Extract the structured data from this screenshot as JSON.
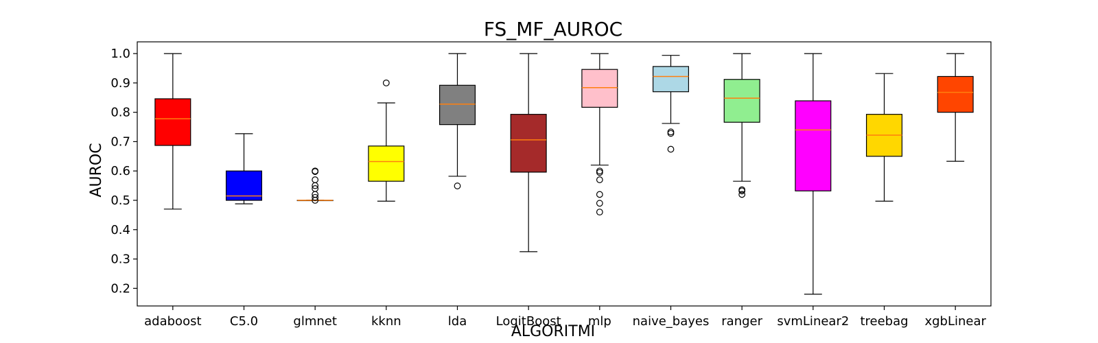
{
  "chart_data": {
    "type": "box",
    "title": "FS_MF_AUROC",
    "xlabel": "ALGORITMI",
    "ylabel": "AUROC",
    "ylim": [
      0.14,
      1.04
    ],
    "yticks": [
      "0.2",
      "0.3",
      "0.4",
      "0.5",
      "0.6",
      "0.7",
      "0.8",
      "0.9",
      "1.0"
    ],
    "grid": false,
    "median_color": "#ff7f0e",
    "categories": [
      "adaboost",
      "C5.0",
      "glmnet",
      "kknn",
      "lda",
      "LogitBoost",
      "mlp",
      "naive_bayes",
      "ranger",
      "svmLinear2",
      "treebag",
      "xgbLinear"
    ],
    "series": [
      {
        "color": "#ff0000",
        "whisker_low": 0.47,
        "q1": 0.687,
        "median": 0.778,
        "q3": 0.846,
        "whisker_high": 1.0,
        "outliers": []
      },
      {
        "color": "#0000ff",
        "whisker_low": 0.488,
        "q1": 0.5,
        "median": 0.515,
        "q3": 0.6,
        "whisker_high": 0.727,
        "outliers": []
      },
      {
        "color": "#ffffff",
        "whisker_low": 0.5,
        "q1": 0.5,
        "median": 0.5,
        "q3": 0.5,
        "whisker_high": 0.5,
        "outliers": [
          0.6,
          0.598,
          0.57,
          0.55,
          0.54,
          0.52,
          0.51,
          0.5
        ]
      },
      {
        "color": "#ffff00",
        "whisker_low": 0.497,
        "q1": 0.565,
        "median": 0.632,
        "q3": 0.685,
        "whisker_high": 0.832,
        "outliers": [
          0.9
        ]
      },
      {
        "color": "#808080",
        "whisker_low": 0.582,
        "q1": 0.758,
        "median": 0.828,
        "q3": 0.892,
        "whisker_high": 1.0,
        "outliers": [
          0.549
        ]
      },
      {
        "color": "#a52a2a",
        "whisker_low": 0.325,
        "q1": 0.596,
        "median": 0.706,
        "q3": 0.793,
        "whisker_high": 1.0,
        "outliers": []
      },
      {
        "color": "#ffc0cb",
        "whisker_low": 0.62,
        "q1": 0.817,
        "median": 0.884,
        "q3": 0.946,
        "whisker_high": 1.0,
        "outliers": [
          0.6,
          0.595,
          0.57,
          0.52,
          0.49,
          0.46
        ]
      },
      {
        "color": "#add8e6",
        "whisker_low": 0.762,
        "q1": 0.87,
        "median": 0.922,
        "q3": 0.956,
        "whisker_high": 0.994,
        "outliers": [
          0.733,
          0.728,
          0.674
        ]
      },
      {
        "color": "#90ee90",
        "whisker_low": 0.565,
        "q1": 0.766,
        "median": 0.848,
        "q3": 0.912,
        "whisker_high": 1.0,
        "outliers": [
          0.536,
          0.532,
          0.52
        ]
      },
      {
        "color": "#ff00ff",
        "whisker_low": 0.18,
        "q1": 0.532,
        "median": 0.74,
        "q3": 0.839,
        "whisker_high": 1.0,
        "outliers": []
      },
      {
        "color": "#ffd700",
        "whisker_low": 0.497,
        "q1": 0.65,
        "median": 0.722,
        "q3": 0.793,
        "whisker_high": 0.932,
        "outliers": []
      },
      {
        "color": "#ff4500",
        "whisker_low": 0.633,
        "q1": 0.8,
        "median": 0.868,
        "q3": 0.922,
        "whisker_high": 1.0,
        "outliers": []
      }
    ]
  }
}
